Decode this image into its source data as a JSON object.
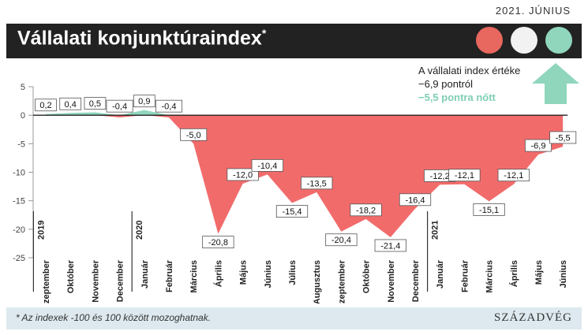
{
  "header": {
    "date": "2021. JÚNIUS",
    "title": "Vállalati konjunktúraindex",
    "title_mark": "*"
  },
  "colors": {
    "negative": "#f26b6b",
    "positive": "#8fd6bc",
    "banner": "#222222",
    "footer": "#dde9ee",
    "arrow": "#8fd6bc"
  },
  "icons": [
    "red-circle-icon",
    "white-circle-icon",
    "teal-circle-icon",
    "up-arrow-icon"
  ],
  "annotation": {
    "line1": "A vállalati index értéke",
    "line2": "−6,9 pontról",
    "line3": "−5,5 pontra nőtt"
  },
  "footer": {
    "note": "* Az indexek -100 és 100 között mozoghatnak.",
    "brand": "SZÁZADVÉG"
  },
  "chart_data": {
    "type": "area",
    "ylim": [
      -25,
      5
    ],
    "yticks": [
      "5",
      "0",
      "-5",
      "-10",
      "-15",
      "-20",
      "-25"
    ],
    "grid": false,
    "categories": [
      "Szeptember",
      "Október",
      "November",
      "December",
      "Január",
      "Február",
      "Március",
      "Április",
      "Május",
      "Június",
      "Július",
      "Augusztus",
      "Szeptember",
      "Október",
      "November",
      "December",
      "Január",
      "Február",
      "Március",
      "Április",
      "Május",
      "Június"
    ],
    "years": [
      {
        "label": "2019",
        "start_index": 0
      },
      {
        "label": "2020",
        "start_index": 4
      },
      {
        "label": "2021",
        "start_index": 16
      }
    ],
    "values": [
      0.2,
      0.4,
      0.5,
      -0.4,
      0.9,
      -0.4,
      -5.0,
      -20.8,
      -12.0,
      -10.4,
      -15.4,
      -13.5,
      -20.4,
      -18.2,
      -21.4,
      -16.4,
      -12.2,
      -12.1,
      -15.1,
      -12.1,
      -6.9,
      -5.5
    ],
    "value_labels": [
      "0,2",
      "0,4",
      "0,5",
      "-0,4",
      "0,9",
      "-0,4",
      "-5,0",
      "-20,8",
      "-12,0",
      "-10,4",
      "-15,4",
      "-13,5",
      "-20,4",
      "-18,2",
      "-21,4",
      "-16,4",
      "-12,2",
      "-12,1",
      "-15,1",
      "-12,1",
      "-6,9",
      "-5,5"
    ]
  }
}
